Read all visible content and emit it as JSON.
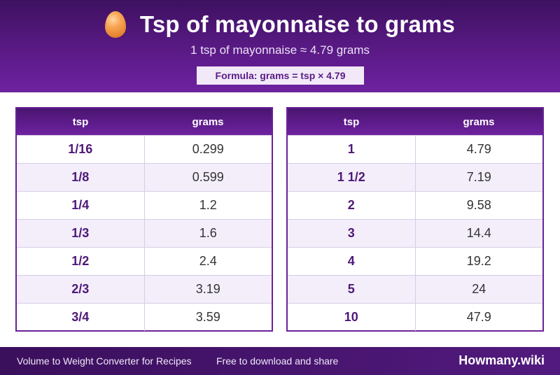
{
  "header": {
    "title": "Tsp of mayonnaise to grams",
    "icon": "egg-icon",
    "subtitle": "1 tsp of mayonnaise ≈ 4.79 grams",
    "formula": "Formula: grams = tsp × 4.79"
  },
  "tables": {
    "left": {
      "col1": "tsp",
      "col2": "grams",
      "rows": [
        {
          "tsp": "1/16",
          "grams": "0.299"
        },
        {
          "tsp": "1/8",
          "grams": "0.599"
        },
        {
          "tsp": "1/4",
          "grams": "1.2"
        },
        {
          "tsp": "1/3",
          "grams": "1.6"
        },
        {
          "tsp": "1/2",
          "grams": "2.4"
        },
        {
          "tsp": "2/3",
          "grams": "3.19"
        },
        {
          "tsp": "3/4",
          "grams": "3.59"
        }
      ]
    },
    "right": {
      "col1": "tsp",
      "col2": "grams",
      "rows": [
        {
          "tsp": "1",
          "grams": "4.79"
        },
        {
          "tsp": "1 1/2",
          "grams": "7.19"
        },
        {
          "tsp": "2",
          "grams": "9.58"
        },
        {
          "tsp": "3",
          "grams": "14.4"
        },
        {
          "tsp": "4",
          "grams": "19.2"
        },
        {
          "tsp": "5",
          "grams": "24"
        },
        {
          "tsp": "10",
          "grams": "47.9"
        }
      ]
    }
  },
  "footer": {
    "left": "Volume to Weight Converter for Recipes",
    "middle": "Free to download and share",
    "brand": "Howmany.wiki"
  },
  "colors": {
    "primary": "#5a1a86",
    "accent": "#f7a552"
  }
}
